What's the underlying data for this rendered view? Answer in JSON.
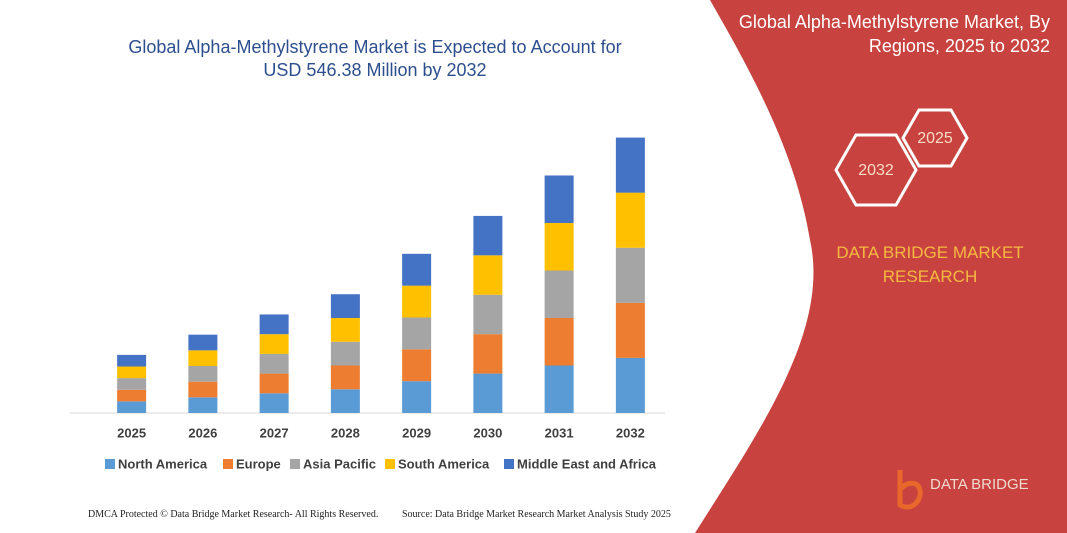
{
  "chart_data": {
    "type": "bar",
    "stacked": true,
    "title": "Global Alpha-Methylstyrene Market is Expected to Account for USD  546.38 Million by 2032",
    "categories": [
      "2025",
      "2026",
      "2027",
      "2028",
      "2029",
      "2030",
      "2031",
      "2032"
    ],
    "series": [
      {
        "name": "North America",
        "color": "#5b9bd5",
        "values": [
          23,
          31,
          39,
          47,
          63,
          78,
          94,
          109
        ]
      },
      {
        "name": "Europe",
        "color": "#ed7d31",
        "values": [
          23,
          31,
          39,
          47,
          63,
          78,
          94,
          109
        ]
      },
      {
        "name": "Asia Pacific",
        "color": "#a5a5a5",
        "values": [
          23,
          31,
          39,
          47,
          63,
          78,
          94,
          109
        ]
      },
      {
        "name": "South America",
        "color": "#ffc000",
        "values": [
          23,
          31,
          39,
          47,
          63,
          78,
          94,
          109
        ]
      },
      {
        "name": "Middle East and Africa",
        "color": "#4472c4",
        "values": [
          23,
          31,
          39,
          47,
          63,
          78,
          94,
          109
        ]
      }
    ],
    "ylim": [
      0,
      560
    ],
    "legend": "bottom"
  },
  "panel": {
    "title": "Global Alpha-Methylstyrene Market, By Regions, 2025 to 2032",
    "hexagons": [
      "2025",
      "2032"
    ],
    "brand": "DATA BRIDGE MARKET RESEARCH"
  },
  "logo": "DATA BRIDGE",
  "footer": {
    "left": "DMCA Protected © Data Bridge Market Research-  All Rights Reserved.",
    "right": "Source: Data Bridge Market Research  Market Analysis Study 2025"
  }
}
